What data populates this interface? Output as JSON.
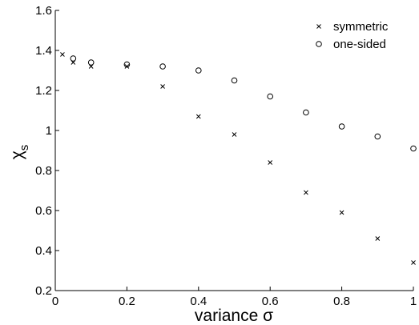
{
  "chart_data": {
    "type": "scatter",
    "xlabel": "variance σ",
    "ylabel": "χs",
    "ylabel_main": "χ",
    "ylabel_sub": "s",
    "xlim": [
      0,
      1
    ],
    "ylim": [
      0.2,
      1.6
    ],
    "xticks": [
      0,
      0.2,
      0.4,
      0.6,
      0.8,
      1
    ],
    "xtick_labels": [
      "0",
      "0.2",
      "0.4",
      "0.6",
      "0.8",
      "1"
    ],
    "yticks": [
      0.2,
      0.4,
      0.6,
      0.8,
      1.0,
      1.2,
      1.4,
      1.6
    ],
    "ytick_labels": [
      "0.2",
      "0.4",
      "0.6",
      "0.8",
      "1",
      "1.2",
      "1.4",
      "1.6"
    ],
    "grid": false,
    "legend_position": "top-right",
    "series": [
      {
        "name": "symmetric",
        "marker": "x",
        "color": "#000000",
        "x": [
          0.02,
          0.05,
          0.1,
          0.2,
          0.3,
          0.4,
          0.5,
          0.6,
          0.7,
          0.8,
          0.9,
          1.0
        ],
        "y": [
          1.38,
          1.34,
          1.32,
          1.32,
          1.22,
          1.07,
          0.98,
          0.84,
          0.69,
          0.59,
          0.46,
          0.34
        ]
      },
      {
        "name": "one-sided",
        "marker": "o",
        "color": "#000000",
        "x": [
          0.05,
          0.1,
          0.2,
          0.3,
          0.4,
          0.5,
          0.6,
          0.7,
          0.8,
          0.9,
          1.0
        ],
        "y": [
          1.36,
          1.34,
          1.33,
          1.32,
          1.3,
          1.25,
          1.17,
          1.09,
          1.02,
          0.97,
          0.91
        ]
      }
    ]
  }
}
